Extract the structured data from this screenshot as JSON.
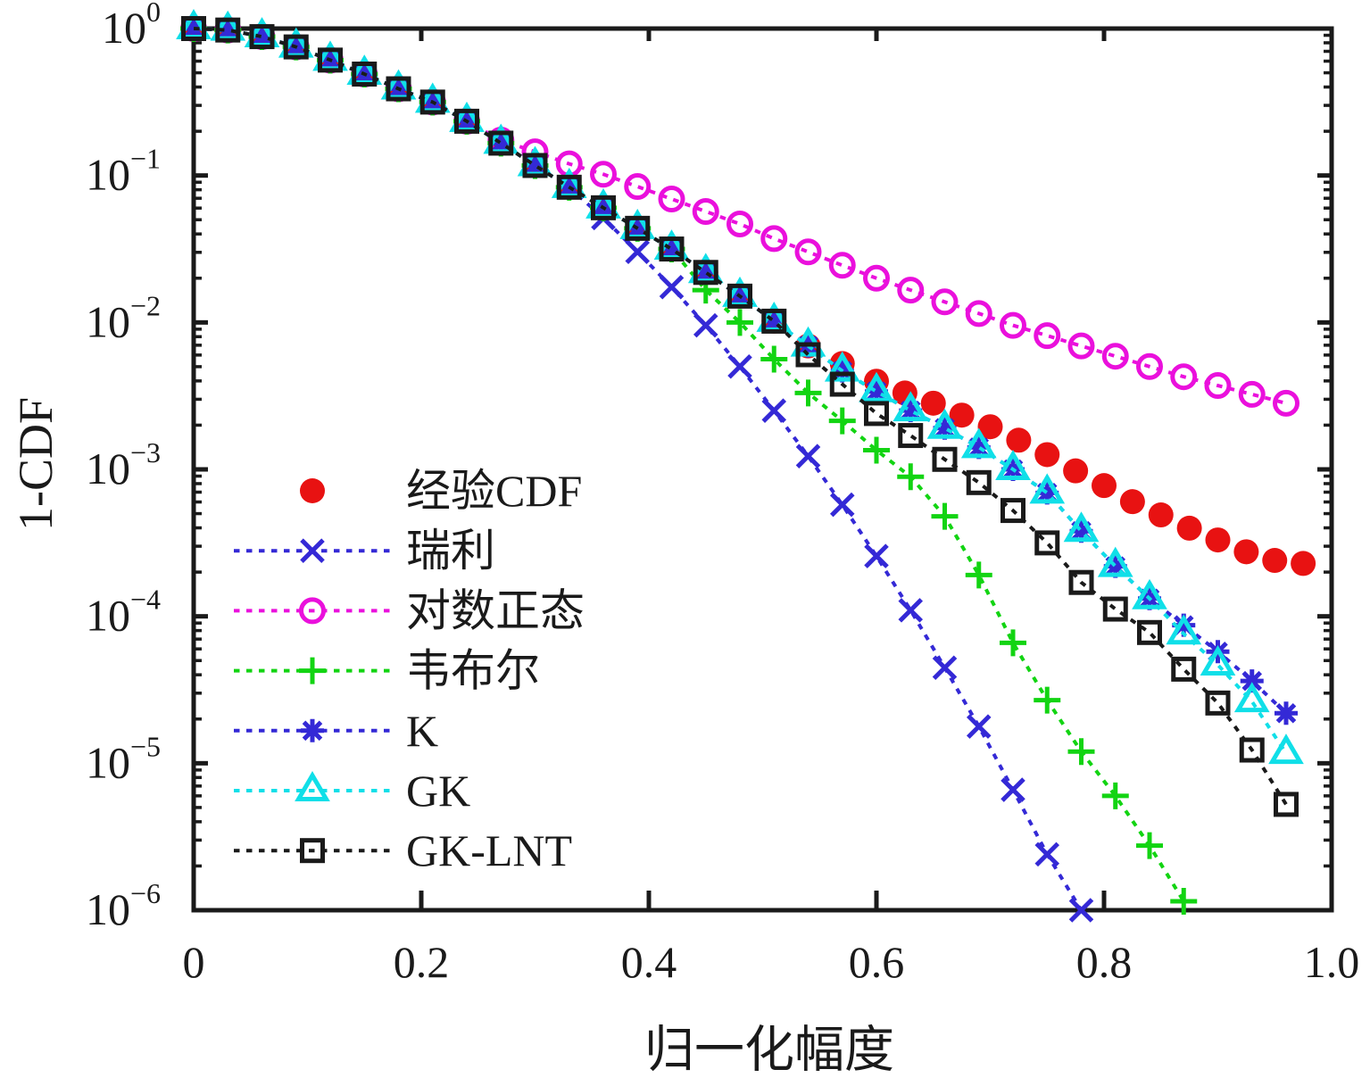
{
  "figure": {
    "background": "#ffffff"
  },
  "axes": {
    "ylabel": "1-CDF",
    "xlabel": "归一化幅度",
    "x_ticks": [
      {
        "v": 0,
        "label": "0"
      },
      {
        "v": 0.2,
        "label": "0.2"
      },
      {
        "v": 0.4,
        "label": "0.4"
      },
      {
        "v": 0.6,
        "label": "0.6"
      },
      {
        "v": 0.8,
        "label": "0.8"
      },
      {
        "v": 1.0,
        "label": "1.0"
      }
    ],
    "y_tick_exponents": [
      0,
      -1,
      -2,
      -3,
      -4,
      -5,
      -6
    ],
    "axis_color": "#1a1a1a"
  },
  "chart_data": {
    "type": "line",
    "title": "",
    "xlabel": "归一化幅度",
    "ylabel": "1-CDF",
    "x_scale": "linear",
    "y_scale": "log",
    "xlim": [
      0,
      1.0
    ],
    "ylim": [
      1e-06,
      1
    ],
    "grid": false,
    "legend_position": "lower-left-inside",
    "series": [
      {
        "id": "empirical-cdf",
        "label": "经验CDF",
        "color": "#e81212",
        "marker": "circle-filled",
        "line": "none",
        "x": [
          0,
          0.03,
          0.06,
          0.09,
          0.12,
          0.15,
          0.18,
          0.21,
          0.24,
          0.27,
          0.3,
          0.33,
          0.36,
          0.39,
          0.42,
          0.45,
          0.48,
          0.51,
          0.54,
          0.57,
          0.6,
          0.625,
          0.65,
          0.675,
          0.7,
          0.725,
          0.75,
          0.775,
          0.8,
          0.825,
          0.85,
          0.875,
          0.9,
          0.925,
          0.95,
          0.975
        ],
        "y": [
          1.0,
          0.977,
          0.881,
          0.75,
          0.61,
          0.49,
          0.389,
          0.316,
          0.234,
          0.166,
          0.117,
          0.0832,
          0.0603,
          0.0437,
          0.0316,
          0.0219,
          0.0151,
          0.0102,
          0.00692,
          0.00525,
          0.00398,
          0.00331,
          0.00282,
          0.00234,
          0.00195,
          0.00158,
          0.00126,
          0.000977,
          0.000776,
          0.000603,
          0.00049,
          0.000398,
          0.000331,
          0.000275,
          0.00024,
          0.000229
        ]
      },
      {
        "id": "rayleigh",
        "label": "瑞利",
        "color": "#3429d6",
        "marker": "x",
        "line": "dashed",
        "x": [
          0,
          0.03,
          0.06,
          0.09,
          0.12,
          0.15,
          0.18,
          0.21,
          0.24,
          0.27,
          0.3,
          0.33,
          0.36,
          0.39,
          0.42,
          0.45,
          0.48,
          0.51,
          0.54,
          0.57,
          0.6,
          0.63,
          0.66,
          0.69,
          0.72,
          0.75,
          0.78
        ],
        "y": [
          1.0,
          0.977,
          0.881,
          0.75,
          0.61,
          0.49,
          0.389,
          0.316,
          0.234,
          0.166,
          0.117,
          0.0832,
          0.0513,
          0.0302,
          0.0174,
          0.00955,
          0.00501,
          0.00251,
          0.00123,
          0.000575,
          0.000257,
          0.00011,
          4.47e-05,
          1.78e-05,
          6.6e-06,
          2.4e-06,
          1e-06
        ]
      },
      {
        "id": "lognormal",
        "label": "对数正态",
        "color": "#ea10dc",
        "marker": "circle-open",
        "line": "dashed",
        "x": [
          0,
          0.03,
          0.06,
          0.09,
          0.12,
          0.15,
          0.18,
          0.21,
          0.24,
          0.27,
          0.3,
          0.33,
          0.36,
          0.39,
          0.42,
          0.45,
          0.48,
          0.51,
          0.54,
          0.57,
          0.6,
          0.63,
          0.66,
          0.69,
          0.72,
          0.75,
          0.78,
          0.81,
          0.84,
          0.87,
          0.9,
          0.93,
          0.96
        ],
        "y": [
          1.0,
          0.977,
          0.881,
          0.75,
          0.61,
          0.49,
          0.389,
          0.316,
          0.234,
          0.174,
          0.145,
          0.12,
          0.102,
          0.0841,
          0.0692,
          0.0569,
          0.0468,
          0.0372,
          0.0302,
          0.0245,
          0.02,
          0.0166,
          0.0138,
          0.0115,
          0.00955,
          0.00813,
          0.00692,
          0.00589,
          0.00501,
          0.00427,
          0.00372,
          0.00324,
          0.00282
        ]
      },
      {
        "id": "weibull",
        "label": "韦布尔",
        "color": "#12d412",
        "marker": "plus",
        "line": "dashed",
        "x": [
          0,
          0.03,
          0.06,
          0.09,
          0.12,
          0.15,
          0.18,
          0.21,
          0.24,
          0.27,
          0.3,
          0.33,
          0.36,
          0.39,
          0.42,
          0.45,
          0.48,
          0.51,
          0.54,
          0.57,
          0.6,
          0.63,
          0.66,
          0.69,
          0.72,
          0.75,
          0.78,
          0.81,
          0.84,
          0.87
        ],
        "y": [
          1.0,
          0.977,
          0.881,
          0.75,
          0.61,
          0.49,
          0.389,
          0.316,
          0.234,
          0.166,
          0.117,
          0.0832,
          0.0603,
          0.0437,
          0.0316,
          0.0166,
          0.01,
          0.00562,
          0.00331,
          0.00214,
          0.00135,
          0.000891,
          0.000479,
          0.000191,
          6.6e-05,
          2.69e-05,
          1.2e-05,
          6e-06,
          2.75e-06,
          1.15e-06
        ]
      },
      {
        "id": "k-distribution",
        "label": "K",
        "color": "#3429d6",
        "marker": "asterisk",
        "line": "dashed",
        "x": [
          0,
          0.03,
          0.06,
          0.09,
          0.12,
          0.15,
          0.18,
          0.21,
          0.24,
          0.27,
          0.3,
          0.33,
          0.36,
          0.39,
          0.42,
          0.45,
          0.48,
          0.51,
          0.54,
          0.57,
          0.6,
          0.63,
          0.66,
          0.69,
          0.72,
          0.75,
          0.78,
          0.81,
          0.84,
          0.87,
          0.9,
          0.93,
          0.96
        ],
        "y": [
          1.0,
          0.977,
          0.881,
          0.75,
          0.61,
          0.49,
          0.389,
          0.316,
          0.234,
          0.166,
          0.117,
          0.0832,
          0.0603,
          0.0437,
          0.0316,
          0.0219,
          0.0151,
          0.0102,
          0.00692,
          0.00468,
          0.00339,
          0.00251,
          0.00191,
          0.00141,
          0.001,
          0.000692,
          0.00038,
          0.000219,
          0.000132,
          8.7e-05,
          5.75e-05,
          3.63e-05,
          2.19e-05
        ]
      },
      {
        "id": "gk",
        "label": "GK",
        "color": "#10dfe8",
        "marker": "triangle-open",
        "line": "dashed",
        "x": [
          0,
          0.03,
          0.06,
          0.09,
          0.12,
          0.15,
          0.18,
          0.21,
          0.24,
          0.27,
          0.3,
          0.33,
          0.36,
          0.39,
          0.42,
          0.45,
          0.48,
          0.51,
          0.54,
          0.57,
          0.6,
          0.63,
          0.66,
          0.69,
          0.72,
          0.75,
          0.78,
          0.81,
          0.84,
          0.87,
          0.9,
          0.93,
          0.96
        ],
        "y": [
          1.0,
          0.977,
          0.881,
          0.75,
          0.61,
          0.49,
          0.389,
          0.316,
          0.234,
          0.166,
          0.117,
          0.0832,
          0.0603,
          0.0437,
          0.0316,
          0.0219,
          0.0151,
          0.0102,
          0.00692,
          0.00468,
          0.00339,
          0.00251,
          0.00191,
          0.00141,
          0.001,
          0.000692,
          0.00038,
          0.000219,
          0.000132,
          7.6e-05,
          4.68e-05,
          2.63e-05,
          1.17e-05
        ]
      },
      {
        "id": "gk-lnt",
        "label": "GK-LNT",
        "color": "#1a1a1a",
        "marker": "square-open",
        "line": "dashed",
        "x": [
          0,
          0.03,
          0.06,
          0.09,
          0.12,
          0.15,
          0.18,
          0.21,
          0.24,
          0.27,
          0.3,
          0.33,
          0.36,
          0.39,
          0.42,
          0.45,
          0.48,
          0.51,
          0.54,
          0.57,
          0.6,
          0.63,
          0.66,
          0.69,
          0.72,
          0.75,
          0.78,
          0.81,
          0.84,
          0.87,
          0.9,
          0.93,
          0.96
        ],
        "y": [
          1.0,
          0.977,
          0.881,
          0.75,
          0.61,
          0.49,
          0.389,
          0.316,
          0.234,
          0.166,
          0.117,
          0.0832,
          0.0603,
          0.0437,
          0.0316,
          0.0219,
          0.0151,
          0.0102,
          0.00603,
          0.0038,
          0.0024,
          0.0017,
          0.00117,
          0.000813,
          0.000525,
          0.000316,
          0.00017,
          0.000112,
          7.76e-05,
          4.37e-05,
          2.57e-05,
          1.23e-05,
          5.25e-06
        ]
      }
    ]
  },
  "legend": {
    "labels": [
      "经验CDF",
      "瑞利",
      "对数正态",
      "韦布尔",
      "K",
      "GK",
      "GK-LNT"
    ]
  }
}
